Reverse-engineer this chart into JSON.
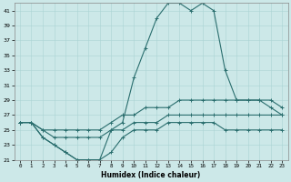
{
  "xlabel": "Humidex (Indice chaleur)",
  "background_color": "#cce8e8",
  "line_color": "#2a6e6e",
  "x": [
    0,
    1,
    2,
    3,
    4,
    5,
    6,
    7,
    8,
    9,
    10,
    11,
    12,
    13,
    14,
    15,
    16,
    17,
    18,
    19,
    20,
    21,
    22,
    23
  ],
  "line_max": [
    26,
    26,
    24,
    23,
    22,
    21,
    21,
    21,
    25,
    26,
    32,
    36,
    40,
    42,
    42,
    41,
    42,
    41,
    33,
    29,
    29,
    29,
    28,
    27
  ],
  "line_min": [
    26,
    26,
    24,
    23,
    22,
    21,
    21,
    21,
    22,
    24,
    25,
    25,
    25,
    26,
    26,
    26,
    26,
    26,
    25,
    25,
    25,
    25,
    25,
    25
  ],
  "line_avg1": [
    26,
    26,
    25,
    25,
    25,
    25,
    25,
    25,
    26,
    27,
    27,
    28,
    28,
    28,
    29,
    29,
    29,
    29,
    29,
    29,
    29,
    29,
    29,
    28
  ],
  "line_avg2": [
    26,
    26,
    25,
    24,
    24,
    24,
    24,
    24,
    25,
    25,
    26,
    26,
    26,
    27,
    27,
    27,
    27,
    27,
    27,
    27,
    27,
    27,
    27,
    27
  ],
  "ylim": [
    21,
    42
  ],
  "xlim": [
    -0.5,
    23.5
  ],
  "yticks": [
    21,
    23,
    25,
    27,
    29,
    31,
    33,
    35,
    37,
    39,
    41
  ],
  "xticks": [
    0,
    1,
    2,
    3,
    4,
    5,
    6,
    7,
    8,
    9,
    10,
    11,
    12,
    13,
    14,
    15,
    16,
    17,
    18,
    19,
    20,
    21,
    22,
    23
  ]
}
